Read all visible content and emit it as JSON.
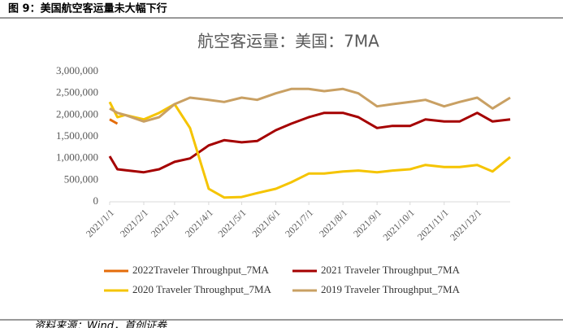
{
  "figure_caption": "图 9：美国航空客运量未大幅下行",
  "source": "资料来源：Wind，首创证券",
  "chart_data": {
    "type": "line",
    "title": "航空客运量：美国：7MA",
    "x": [
      "2021/1/1",
      "2021/1/8",
      "2021/1/15",
      "2021/2/1",
      "2021/2/15",
      "2021/3/1",
      "2021/3/15",
      "2021/4/1",
      "2021/4/15",
      "2021/5/1",
      "2021/5/15",
      "2021/6/1",
      "2021/6/15",
      "2021/7/1",
      "2021/7/15",
      "2021/8/1",
      "2021/8/15",
      "2021/9/1",
      "2021/9/15",
      "2021/10/1",
      "2021/10/15",
      "2021/11/1",
      "2021/11/15",
      "2021/12/1",
      "2021/12/15",
      "2021/12/31"
    ],
    "series": [
      {
        "name": "2022Traveler Throughput_7MA",
        "color": "#E46C0A",
        "values": [
          1900000,
          1800000,
          null,
          null,
          null,
          null,
          null,
          null,
          null,
          null,
          null,
          null,
          null,
          null,
          null,
          null,
          null,
          null,
          null,
          null,
          null,
          null,
          null,
          null,
          null,
          null
        ]
      },
      {
        "name": "2021 Traveler Throughput_7MA",
        "color": "#A50000",
        "values": [
          1050000,
          750000,
          730000,
          680000,
          750000,
          920000,
          1000000,
          1300000,
          1420000,
          1370000,
          1400000,
          1650000,
          1800000,
          1950000,
          2050000,
          2050000,
          1950000,
          1700000,
          1750000,
          1750000,
          1900000,
          1850000,
          1850000,
          2050000,
          1850000,
          1900000
        ]
      },
      {
        "name": "2020 Traveler Throughput_7MA",
        "color": "#F5C400",
        "values": [
          2300000,
          1950000,
          2000000,
          1900000,
          2050000,
          2250000,
          1700000,
          300000,
          100000,
          110000,
          200000,
          300000,
          450000,
          650000,
          650000,
          700000,
          720000,
          680000,
          720000,
          750000,
          850000,
          800000,
          800000,
          850000,
          700000,
          1030000
        ]
      },
      {
        "name": "2019 Traveler Throughput_7MA",
        "color": "#C9A063",
        "values": [
          2150000,
          2050000,
          2000000,
          1850000,
          1950000,
          2250000,
          2400000,
          2350000,
          2300000,
          2400000,
          2350000,
          2500000,
          2600000,
          2600000,
          2550000,
          2600000,
          2500000,
          2200000,
          2250000,
          2300000,
          2350000,
          2200000,
          2300000,
          2400000,
          2150000,
          2400000
        ]
      }
    ],
    "xticks": [
      "2021/1/1",
      "2021/2/1",
      "2021/3/1",
      "2021/4/1",
      "2021/5/1",
      "2021/6/1",
      "2021/7/1",
      "2021/8/1",
      "2021/9/1",
      "2021/10/1",
      "2021/11/1",
      "2021/12/1"
    ],
    "ylim": [
      0,
      3000000
    ],
    "yticks": [
      0,
      {
        "value": 500000,
        "label": "500,000"
      },
      {
        "value": 1000000,
        "label": "1,000,000"
      },
      {
        "value": 1500000,
        "label": "1,500,000"
      },
      {
        "value": 2000000,
        "label": "2,000,000"
      },
      {
        "value": 2500000,
        "label": "2,500,000"
      },
      {
        "value": 3000000,
        "label": "3,000,000"
      }
    ],
    "grid": false,
    "legend": "bottom"
  }
}
